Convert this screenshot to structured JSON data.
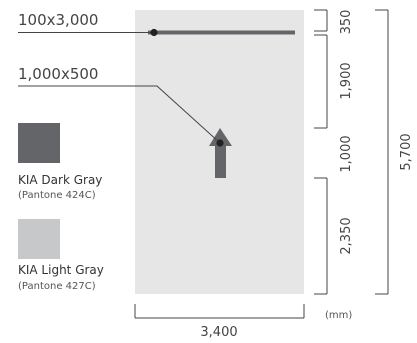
{
  "colors": {
    "panel": "#e6e6e6",
    "dark_gray": "#646569",
    "light_gray": "#c6c8ca",
    "line": "#444444"
  },
  "callouts": {
    "bar_size": "100x3,000",
    "arrow_size": "1,000x500"
  },
  "swatches": [
    {
      "name": "KIA Dark Gray",
      "pantone": "(Pantone 424C)",
      "color": "#646569"
    },
    {
      "name": "KIA Light Gray",
      "pantone": "(Pantone 427C)",
      "color": "#c6c8ca"
    }
  ],
  "vertical_dimensions": [
    "350",
    "1,900",
    "1,000",
    "2,350"
  ],
  "total_height": "5,700",
  "total_width": "3,400",
  "unit": "(mm)"
}
